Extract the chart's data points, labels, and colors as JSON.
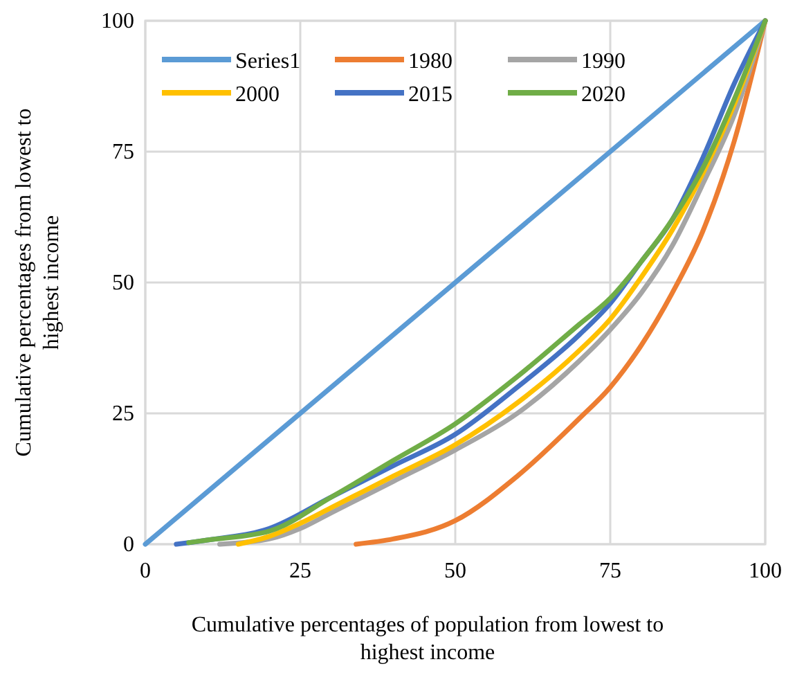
{
  "chart_data": {
    "type": "line",
    "xlabel": "Cumulative percentages of population from lowest to highest income",
    "ylabel": "Cumulative percentages from lowest to highest income",
    "xlim": [
      0,
      100
    ],
    "ylim": [
      0,
      100
    ],
    "xticks": [
      0,
      25,
      50,
      75,
      100
    ],
    "yticks": [
      0,
      25,
      50,
      75,
      100
    ],
    "grid": true,
    "legend": "top left",
    "marker": "none",
    "line_style": "solid",
    "series": [
      {
        "name": "Series1",
        "color": "#5b9bd5",
        "x": [
          0,
          100
        ],
        "values": [
          0,
          100
        ]
      },
      {
        "name": "1980",
        "color": "#ed7d31",
        "x": [
          34,
          40,
          50,
          60,
          70,
          75,
          80,
          85,
          90,
          95,
          100
        ],
        "values": [
          0,
          1,
          4.5,
          13,
          24,
          30,
          38,
          48,
          60,
          77,
          100
        ]
      },
      {
        "name": "1990",
        "color": "#a5a5a5",
        "x": [
          12,
          20,
          25,
          30,
          40,
          50,
          60,
          70,
          75,
          80,
          85,
          90,
          95,
          100
        ],
        "values": [
          0,
          1,
          3,
          6,
          12,
          18,
          25,
          35,
          41,
          48,
          57,
          69,
          82,
          100
        ]
      },
      {
        "name": "2000",
        "color": "#ffc000",
        "x": [
          15,
          20,
          25,
          30,
          40,
          50,
          60,
          70,
          75,
          80,
          85,
          90,
          95,
          100
        ],
        "values": [
          0,
          1.5,
          4,
          7,
          13,
          19,
          27,
          37,
          43,
          51,
          60,
          71,
          84,
          100
        ]
      },
      {
        "name": "2015",
        "color": "#4472c4",
        "x": [
          5,
          10,
          20,
          30,
          40,
          50,
          60,
          70,
          75,
          80,
          85,
          90,
          95,
          100
        ],
        "values": [
          0,
          0.8,
          3,
          9,
          15,
          21,
          30,
          40,
          46,
          54,
          62,
          74,
          88,
          100
        ]
      },
      {
        "name": "2020",
        "color": "#70ad47",
        "x": [
          7,
          10,
          20,
          30,
          40,
          50,
          60,
          70,
          75,
          80,
          85,
          90,
          95,
          100
        ],
        "values": [
          0.3,
          0.8,
          2.5,
          9,
          16,
          23,
          32,
          42,
          47,
          54,
          62,
          72,
          85,
          100
        ]
      }
    ]
  }
}
